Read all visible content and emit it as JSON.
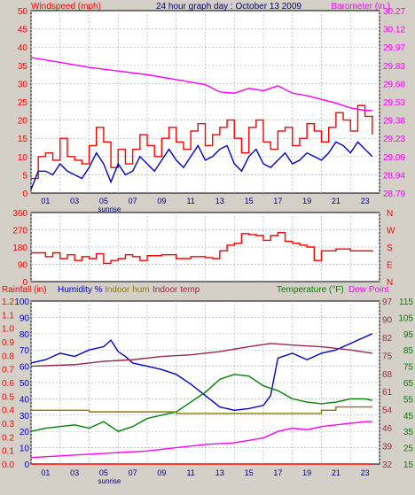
{
  "colors": {
    "background": "#d4d0c8",
    "plot": "#ffffff",
    "grid": "#aab4c8",
    "red": "#ff0000",
    "blue": "#0000cc",
    "magenta": "#ff00ff",
    "olive": "#8a7a00",
    "maroon": "#9a2848",
    "green": "#008000",
    "navy": "#000080"
  },
  "chart_data": [
    {
      "type": "line",
      "title": "24 hour graph day : October 13 2009",
      "left_axis_label": "Windspeed (mph)",
      "right_axis_label": "Barometer (in.)",
      "left_ylim": [
        0,
        50
      ],
      "left_ticks": [
        "0",
        "5",
        "10",
        "15",
        "20",
        "25",
        "30",
        "35",
        "40",
        "45",
        "50"
      ],
      "right_ylim": [
        28.79,
        30.27
      ],
      "right_ticks": [
        "28.79",
        "28.94",
        "29.09",
        "29.23",
        "29.38",
        "29.53",
        "29.68",
        "29.83",
        "29.97",
        "30.12",
        "30.27"
      ],
      "x_hours": [
        "01",
        "03",
        "05",
        "07",
        "09",
        "11",
        "13",
        "15",
        "17",
        "19",
        "21",
        "23"
      ],
      "x_annotation": "sunrise",
      "grid": true,
      "series": [
        {
          "key": "gust",
          "color": "red",
          "axis": "left",
          "x": [
            0,
            0.5,
            1,
            1.5,
            2,
            2.5,
            3,
            3.5,
            4,
            4.5,
            5,
            5.5,
            6,
            6.5,
            7,
            7.5,
            8,
            8.5,
            9,
            9.5,
            10,
            10.5,
            11,
            11.5,
            12,
            12.5,
            13,
            13.5,
            14,
            14.5,
            15,
            15.5,
            16,
            16.5,
            17,
            17.5,
            18,
            18.5,
            19,
            19.5,
            20,
            20.5,
            21,
            21.5,
            22,
            22.5,
            23,
            23.5
          ],
          "values": [
            4,
            10,
            11,
            9,
            15,
            10,
            9,
            8,
            13,
            18,
            14,
            7,
            12,
            8,
            12,
            16,
            13,
            10,
            15,
            18,
            14,
            12,
            17,
            19,
            13,
            16,
            18,
            20,
            15,
            11,
            18,
            20,
            14,
            12,
            17,
            18,
            13,
            15,
            19,
            17,
            14,
            18,
            22,
            20,
            17,
            24,
            21,
            16
          ]
        },
        {
          "key": "wind",
          "color": "blue",
          "axis": "left",
          "x": [
            0,
            0.5,
            1,
            1.5,
            2,
            2.5,
            3,
            3.5,
            4,
            4.5,
            5,
            5.5,
            6,
            6.5,
            7,
            7.5,
            8,
            8.5,
            9,
            9.5,
            10,
            10.5,
            11,
            11.5,
            12,
            12.5,
            13,
            13.5,
            14,
            14.5,
            15,
            15.5,
            16,
            16.5,
            17,
            17.5,
            18,
            18.5,
            19,
            19.5,
            20,
            20.5,
            21,
            21.5,
            22,
            22.5,
            23,
            23.5
          ],
          "values": [
            1,
            6,
            6,
            5,
            8,
            6,
            5,
            4,
            7,
            11,
            8,
            3,
            8,
            5,
            6,
            10,
            8,
            6,
            9,
            12,
            9,
            7,
            10,
            13,
            9,
            10,
            12,
            13,
            8,
            6,
            10,
            12,
            8,
            7,
            9,
            11,
            8,
            9,
            11,
            10,
            9,
            11,
            14,
            13,
            11,
            14,
            12,
            10
          ]
        },
        {
          "key": "barometer",
          "color": "magenta",
          "axis": "right",
          "x": [
            0,
            2,
            4,
            6,
            8,
            10,
            12,
            13,
            14,
            15,
            16,
            17,
            18,
            19,
            20,
            21,
            22,
            23,
            23.5
          ],
          "values": [
            29.89,
            29.85,
            29.81,
            29.78,
            29.75,
            29.71,
            29.67,
            29.61,
            29.6,
            29.64,
            29.62,
            29.66,
            29.6,
            29.58,
            29.55,
            29.52,
            29.48,
            29.46,
            29.46
          ]
        }
      ]
    },
    {
      "type": "line",
      "ylim": [
        0,
        360
      ],
      "left_ticks": [
        "0",
        "90",
        "180",
        "270",
        "360"
      ],
      "right_ticks": [
        "N",
        "W",
        "S",
        "E",
        "N"
      ],
      "grid": true,
      "series": [
        {
          "key": "direction",
          "color": "red",
          "axis": "left",
          "x": [
            0,
            1,
            1.5,
            2,
            2.5,
            3,
            3.5,
            4,
            4.5,
            5,
            5.5,
            6,
            6.5,
            7,
            7.5,
            8,
            9,
            10,
            11,
            12,
            12.5,
            13,
            13.5,
            14,
            14.5,
            15,
            15.5,
            16,
            16.5,
            17,
            17.5,
            18,
            18.5,
            19,
            19.5,
            20,
            21,
            22,
            23,
            23.5
          ],
          "values": [
            150,
            130,
            150,
            120,
            140,
            110,
            130,
            120,
            145,
            95,
            110,
            120,
            140,
            130,
            110,
            135,
            140,
            120,
            130,
            125,
            120,
            160,
            190,
            200,
            250,
            245,
            240,
            215,
            240,
            255,
            210,
            200,
            190,
            180,
            110,
            160,
            170,
            160,
            160,
            155
          ]
        }
      ]
    },
    {
      "type": "line",
      "labels": {
        "rainfall": "Rainfall (in)",
        "humidity": "Humidity %",
        "indoor_hum": "Indoor hum",
        "indoor_temp": "Indoor temp",
        "temperature": "Temperature (°F)",
        "dew_point": "Dew Point"
      },
      "ylim_humidity": [
        0,
        100
      ],
      "humidity_ticks": [
        "0",
        "10",
        "20",
        "30",
        "40",
        "50",
        "60",
        "70",
        "80",
        "90",
        "100"
      ],
      "ylim_rain": [
        0,
        1.2
      ],
      "rain_ticks": [
        "0.0",
        "0.1",
        "0.2",
        "0.3",
        "0.4",
        "0.5",
        "0.6",
        "0.7",
        "0.8",
        "0.9",
        "1.0",
        "1.1",
        "1.2"
      ],
      "ylim_temp_right1": [
        32,
        97
      ],
      "right1_ticks": [
        "32",
        "39",
        "46",
        "54",
        "61",
        "68",
        "75",
        "82",
        "90",
        "97"
      ],
      "ylim_temp_right2": [
        15,
        115
      ],
      "right2_ticks": [
        "15",
        "25",
        "35",
        "45",
        "55",
        "65",
        "75",
        "85",
        "95",
        "105",
        "115"
      ],
      "grid": true,
      "series": [
        {
          "key": "humidity",
          "color": "blue",
          "axis": "humidity",
          "x": [
            0,
            1,
            2,
            3,
            4,
            5,
            5.5,
            6,
            6.5,
            7,
            8,
            9,
            10,
            11,
            12,
            13,
            14,
            15,
            16,
            16.5,
            17,
            18,
            19,
            20,
            21,
            22,
            23,
            23.5
          ],
          "values": [
            62,
            64,
            68,
            66,
            70,
            72,
            76,
            69,
            66,
            62,
            60,
            58,
            55,
            49,
            42,
            35,
            33,
            34,
            36,
            42,
            65,
            68,
            64,
            68,
            70,
            74,
            78,
            80
          ]
        },
        {
          "key": "indoor_temp",
          "color": "maroon",
          "axis": "humidity",
          "x": [
            0,
            3,
            5,
            7,
            9,
            11,
            13,
            15,
            16.5,
            18,
            20,
            22,
            23.5
          ],
          "values": [
            60,
            61,
            63,
            64,
            66,
            67,
            69,
            72,
            74,
            73,
            72,
            70,
            68
          ]
        },
        {
          "key": "temperature",
          "color": "green",
          "axis": "humidity",
          "x": [
            0,
            1,
            2,
            3,
            4,
            5,
            6,
            7,
            8,
            9,
            10,
            11,
            12,
            13,
            14,
            15,
            16,
            17,
            18,
            19,
            20,
            21,
            22,
            23,
            23.5
          ],
          "values": [
            20,
            22,
            23,
            24,
            22,
            26,
            20,
            23,
            28,
            30,
            32,
            38,
            44,
            52,
            55,
            54,
            48,
            45,
            40,
            38,
            37,
            38,
            40,
            40,
            39
          ]
        },
        {
          "key": "indoor_hum",
          "color": "olive",
          "axis": "humidity",
          "x": [
            0,
            2,
            4,
            6,
            8,
            10,
            12,
            14,
            16,
            18,
            20,
            21,
            22,
            23.5
          ],
          "values": [
            33,
            33,
            32,
            32,
            32,
            31,
            31,
            31,
            31,
            31,
            33,
            35,
            35,
            35
          ]
        },
        {
          "key": "dew_point",
          "color": "magenta",
          "axis": "humidity",
          "x": [
            0,
            2,
            4,
            6,
            8,
            10,
            12,
            14,
            16,
            17,
            18,
            19,
            20,
            21,
            22,
            23,
            23.5
          ],
          "values": [
            4,
            5,
            6,
            7,
            8,
            10,
            12,
            13,
            16,
            20,
            22,
            21,
            23,
            24,
            25,
            26,
            26
          ]
        },
        {
          "key": "rainfall",
          "color": "red",
          "axis": "rain",
          "x": [
            0,
            23.5
          ],
          "values": [
            0,
            0
          ]
        }
      ]
    }
  ]
}
